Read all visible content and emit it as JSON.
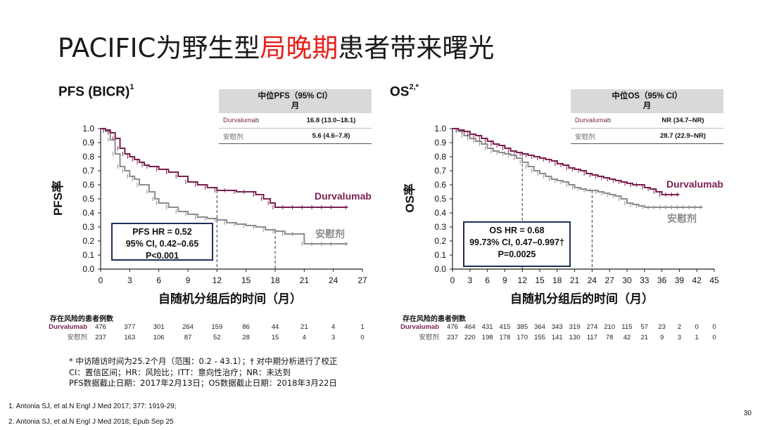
{
  "slide": {
    "title_prefix": "PACIFIC为野生型",
    "title_highlight": "局晚期",
    "title_suffix": "患者带来曙光",
    "title_highlight_color": "#e8201c",
    "page_number": "30"
  },
  "colors": {
    "durvalumab": "#7a1f4f",
    "placebo": "#8c8c8c",
    "hr_box_border": "#1f2f5a"
  },
  "footnotes": [
    "* 中访随访时间为25.2个月（范围：0.2 - 43.1）；† 对中期分析进行了校正",
    "CI：置信区间；HR：风险比；ITT：意向性治疗；NR：未达到",
    "PFS数据截止日期：2017年2月13日；OS数据截止日期：2018年3月22日"
  ],
  "references": [
    "1. Antonia SJ, et al.N Engl J Med 2017; 377: 1919-29;",
    "2. Antonia SJ, et al.N Engl J Med 2018; Epub Sep 25"
  ],
  "chart_data": [
    {
      "type": "line",
      "title": "PFS (BICR)",
      "title_sup": "1",
      "xlabel": "自随机分组后的时间（月）",
      "ylabel": "PFS率",
      "xlim": [
        0,
        27
      ],
      "ylim": [
        0,
        1
      ],
      "xticks": [
        0,
        3,
        6,
        9,
        12,
        15,
        18,
        21,
        24,
        27
      ],
      "yticks": [
        "0.0",
        "0.1",
        "0.2",
        "0.3",
        "0.4",
        "0.5",
        "0.6",
        "0.7",
        "0.8",
        "0.9",
        "1.0"
      ],
      "median_table": {
        "header_line1": "中位PFS（95% CI）",
        "header_line2": "月",
        "rows": [
          {
            "label": "Durvalumab",
            "value": "16.8 (13.0–18.1)"
          },
          {
            "label": "安慰剂",
            "value": "5.6 (4.6–7.8)"
          }
        ]
      },
      "hr_box": [
        "PFS HR = 0.52",
        "95% CI, 0.42–0.65",
        "P<0.001"
      ],
      "series": [
        {
          "name": "Durvalumab",
          "x": [
            0,
            0.5,
            1,
            1.5,
            2,
            2.5,
            3,
            3.5,
            4,
            4.5,
            5,
            6,
            7,
            8,
            9,
            10,
            11,
            12,
            13,
            14,
            15,
            16,
            16.8,
            17.5,
            18,
            19,
            20,
            21,
            22,
            23,
            24,
            25.5
          ],
          "y": [
            1.0,
            0.99,
            0.97,
            0.93,
            0.86,
            0.82,
            0.8,
            0.78,
            0.76,
            0.74,
            0.73,
            0.71,
            0.69,
            0.66,
            0.62,
            0.6,
            0.58,
            0.56,
            0.56,
            0.55,
            0.55,
            0.53,
            0.5,
            0.47,
            0.44,
            0.44,
            0.44,
            0.44,
            0.44,
            0.44,
            0.44,
            0.44
          ]
        },
        {
          "name": "安慰剂",
          "x": [
            0,
            0.5,
            1,
            1.5,
            2,
            2.5,
            3,
            3.5,
            4,
            5,
            5.6,
            6,
            7,
            8,
            9,
            10,
            11,
            12,
            13,
            14,
            15,
            16,
            17,
            18,
            19,
            20,
            21,
            22,
            23,
            24,
            25.5
          ],
          "y": [
            1.0,
            0.98,
            0.92,
            0.82,
            0.73,
            0.7,
            0.66,
            0.64,
            0.6,
            0.55,
            0.5,
            0.47,
            0.44,
            0.41,
            0.39,
            0.37,
            0.36,
            0.35,
            0.33,
            0.32,
            0.31,
            0.3,
            0.28,
            0.27,
            0.25,
            0.25,
            0.18,
            0.18,
            0.18,
            0.18,
            0.18
          ]
        }
      ],
      "median_x": [
        12,
        18
      ],
      "risk_table": {
        "title": "存在风险的患者例数",
        "x": [
          0,
          3,
          6,
          9,
          12,
          15,
          18,
          21,
          24,
          27
        ],
        "rows": [
          {
            "label": "Durvalumab",
            "values": [
              "476",
              "377",
              "301",
              "264",
              "159",
              "86",
              "44",
              "21",
              "4",
              "1"
            ]
          },
          {
            "label": "安慰剂",
            "values": [
              "237",
              "163",
              "106",
              "87",
              "52",
              "28",
              "15",
              "4",
              "3",
              "0"
            ]
          }
        ]
      }
    },
    {
      "type": "line",
      "title": "OS",
      "title_sup": "2,*",
      "xlabel": "自随机分组后的时间（月）",
      "ylabel": "OS率",
      "xlim": [
        0,
        45
      ],
      "ylim": [
        0,
        1
      ],
      "xticks": [
        0,
        3,
        6,
        9,
        12,
        15,
        18,
        21,
        24,
        27,
        30,
        33,
        36,
        39,
        42,
        45
      ],
      "yticks": [
        "0.0",
        "0.1",
        "0.2",
        "0.3",
        "0.4",
        "0.5",
        "0.6",
        "0.7",
        "0.8",
        "0.9",
        "1.0"
      ],
      "median_table": {
        "header_line1": "中位OS（95% CI）",
        "header_line2": "月",
        "rows": [
          {
            "label": "Durvalumab",
            "value": "NR (34.7–NR)"
          },
          {
            "label": "安慰剂",
            "value": "28.7 (22.9–NR)"
          }
        ]
      },
      "hr_box": [
        "OS HR = 0.68",
        "99.73% CI, 0.47–0.997†",
        "P=0.0025"
      ],
      "series": [
        {
          "name": "Durvalumab",
          "x": [
            0,
            1,
            2,
            3,
            4,
            5,
            6,
            7,
            8,
            9,
            10,
            11,
            12,
            13,
            14,
            15,
            16,
            17,
            18,
            19,
            20,
            21,
            22,
            23,
            24,
            25,
            26,
            27,
            28,
            29,
            30,
            31,
            32,
            33,
            34,
            35,
            36,
            37,
            38,
            39
          ],
          "y": [
            1.0,
            0.99,
            0.98,
            0.96,
            0.95,
            0.93,
            0.91,
            0.89,
            0.88,
            0.86,
            0.84,
            0.83,
            0.82,
            0.81,
            0.8,
            0.79,
            0.78,
            0.77,
            0.75,
            0.74,
            0.72,
            0.71,
            0.7,
            0.68,
            0.67,
            0.66,
            0.65,
            0.64,
            0.63,
            0.62,
            0.61,
            0.6,
            0.6,
            0.58,
            0.57,
            0.55,
            0.53,
            0.53,
            0.53,
            0.53
          ]
        },
        {
          "name": "安慰剂",
          "x": [
            0,
            1,
            2,
            3,
            4,
            5,
            6,
            7,
            8,
            9,
            10,
            11,
            12,
            13,
            14,
            15,
            16,
            17,
            18,
            19,
            20,
            21,
            22,
            23,
            24,
            25,
            26,
            27,
            28,
            29,
            30,
            31,
            32,
            33,
            34,
            35,
            36,
            37,
            38,
            39,
            40,
            41,
            42,
            43
          ],
          "y": [
            1.0,
            0.98,
            0.95,
            0.93,
            0.91,
            0.89,
            0.86,
            0.84,
            0.83,
            0.82,
            0.81,
            0.79,
            0.76,
            0.73,
            0.7,
            0.68,
            0.66,
            0.64,
            0.63,
            0.62,
            0.6,
            0.58,
            0.57,
            0.56,
            0.56,
            0.55,
            0.54,
            0.53,
            0.52,
            0.5,
            0.47,
            0.46,
            0.45,
            0.44,
            0.44,
            0.44,
            0.44,
            0.44,
            0.44,
            0.44,
            0.44,
            0.44,
            0.44,
            0.44
          ]
        }
      ],
      "median_x": [
        12,
        24
      ],
      "risk_table": {
        "title": "存在风险的患者例数",
        "x": [
          0,
          3,
          6,
          9,
          12,
          15,
          18,
          21,
          24,
          27,
          30,
          33,
          36,
          39,
          42,
          45
        ],
        "rows": [
          {
            "label": "Durvalumab",
            "values": [
              "476",
              "464",
              "431",
              "415",
              "385",
              "364",
              "343",
              "319",
              "274",
              "210",
              "115",
              "57",
              "23",
              "2",
              "0",
              "0"
            ]
          },
          {
            "label": "安慰剂",
            "values": [
              "237",
              "220",
              "198",
              "178",
              "170",
              "155",
              "141",
              "130",
              "117",
              "78",
              "42",
              "21",
              "9",
              "3",
              "1",
              "0"
            ]
          }
        ]
      }
    }
  ]
}
